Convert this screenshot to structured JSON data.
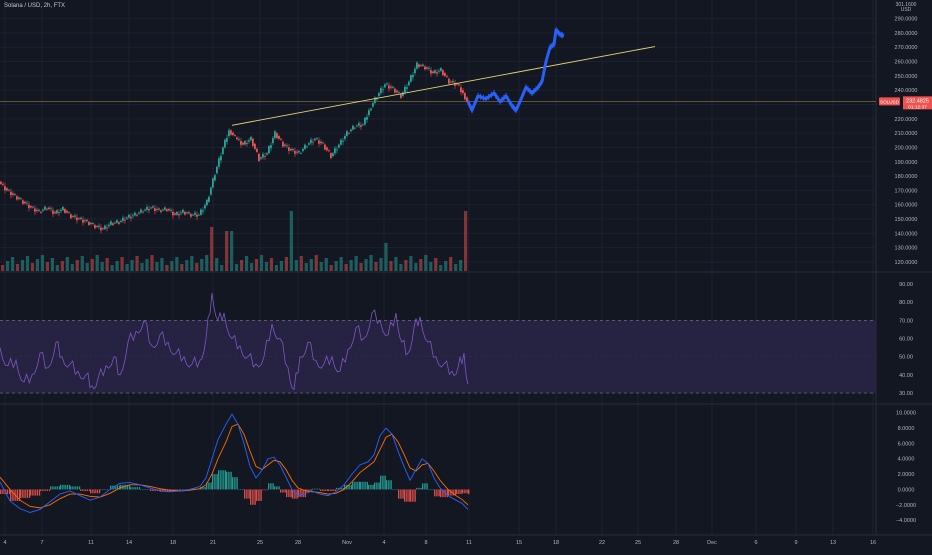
{
  "chart_title": "Solana / USD, 2h, FTX",
  "colors": {
    "background": "#131722",
    "bull": "#26a69a",
    "bear": "#ef5350",
    "projection": "#2962ff",
    "trendline": "#e6d57a",
    "rsi_line": "#7e57c2",
    "rsi_band": "#2a2448",
    "macd_line": "#2962ff",
    "signal_line": "#ff6d00",
    "hist_up": "#26a69a",
    "hist_down": "#ef5350",
    "price_label_bg": "#ef5350",
    "axis_text": "#b2b5be"
  },
  "chart_data": [
    {
      "type": "line",
      "name": "price",
      "x_ticks": [
        "4",
        "7",
        "11",
        "14",
        "18",
        "21",
        "25",
        "28",
        "Nov",
        "4",
        "8",
        "11",
        "15",
        "18",
        "22",
        "25",
        "28",
        "Dec",
        "6",
        "9",
        "13",
        "16"
      ],
      "y_ticks": [
        120,
        130,
        140,
        150,
        160,
        170,
        180,
        190,
        200,
        210,
        220,
        230,
        240,
        250,
        260,
        270,
        280,
        290
      ],
      "y_tick_labels": [
        "120.0000",
        "130.0000",
        "140.0000",
        "150.0000",
        "160.0000",
        "170.0000",
        "180.0000",
        "190.0000",
        "200.0000",
        "210.0000",
        "220.0000",
        "230.0000",
        "240.0000",
        "250.0000",
        "260.0000",
        "270.0000",
        "280.0000",
        "290.0000"
      ],
      "y_top_label": "301.1600",
      "y_unit": "USD",
      "ylim": [
        113,
        303
      ],
      "candles": [
        [
          0,
          176
        ],
        [
          8,
          170
        ],
        [
          16,
          166
        ],
        [
          24,
          162
        ],
        [
          32,
          158
        ],
        [
          40,
          155
        ],
        [
          48,
          158
        ],
        [
          56,
          154
        ],
        [
          64,
          157
        ],
        [
          72,
          152
        ],
        [
          80,
          150
        ],
        [
          88,
          148
        ],
        [
          96,
          145
        ],
        [
          104,
          143
        ],
        [
          112,
          147
        ],
        [
          120,
          148
        ],
        [
          128,
          151
        ],
        [
          136,
          153
        ],
        [
          144,
          156
        ],
        [
          152,
          158
        ],
        [
          160,
          156
        ],
        [
          168,
          157
        ],
        [
          176,
          153
        ],
        [
          184,
          155
        ],
        [
          192,
          153
        ],
        [
          200,
          153
        ],
        [
          208,
          162
        ],
        [
          216,
          182
        ],
        [
          224,
          200
        ],
        [
          230,
          212
        ],
        [
          236,
          207
        ],
        [
          244,
          202
        ],
        [
          252,
          206
        ],
        [
          260,
          192
        ],
        [
          268,
          196
        ],
        [
          276,
          210
        ],
        [
          284,
          202
        ],
        [
          292,
          198
        ],
        [
          300,
          196
        ],
        [
          308,
          202
        ],
        [
          316,
          206
        ],
        [
          324,
          202
        ],
        [
          332,
          194
        ],
        [
          340,
          202
        ],
        [
          348,
          210
        ],
        [
          356,
          215
        ],
        [
          364,
          216
        ],
        [
          370,
          226
        ],
        [
          378,
          236
        ],
        [
          386,
          244
        ],
        [
          394,
          241
        ],
        [
          402,
          236
        ],
        [
          410,
          246
        ],
        [
          418,
          258
        ],
        [
          426,
          256
        ],
        [
          434,
          252
        ],
        [
          442,
          254
        ],
        [
          450,
          246
        ],
        [
          458,
          244
        ],
        [
          464,
          238
        ],
        [
          468,
          232
        ]
      ],
      "volume_bars_count": 94,
      "volume_spikes": [
        [
          212,
          0.55
        ],
        [
          228,
          0.5
        ],
        [
          290,
          0.75
        ],
        [
          385,
          0.35
        ],
        [
          467,
          0.75
        ]
      ],
      "projection": [
        [
          468,
          232
        ],
        [
          472,
          226
        ],
        [
          478,
          236
        ],
        [
          486,
          234
        ],
        [
          494,
          238
        ],
        [
          500,
          232
        ],
        [
          506,
          236
        ],
        [
          512,
          229
        ],
        [
          516,
          226
        ],
        [
          520,
          232
        ],
        [
          526,
          242
        ],
        [
          532,
          238
        ],
        [
          538,
          242
        ],
        [
          542,
          246
        ],
        [
          546,
          260
        ],
        [
          550,
          270
        ],
        [
          554,
          272
        ],
        [
          556,
          282
        ],
        [
          560,
          279
        ],
        [
          564,
          278
        ]
      ],
      "trendline": [
        [
          232,
          215.5
        ],
        [
          655,
          270.5
        ]
      ],
      "horizontal_line": 232.2,
      "current_price_label": "232.4825",
      "countdown_label": "01:12:37",
      "symbol_label": "SOLUSD"
    },
    {
      "type": "line",
      "name": "RSI",
      "y_ticks": [
        30,
        40,
        50,
        60,
        70,
        80,
        90
      ],
      "y_tick_labels": [
        "30.00",
        "40.00",
        "50.00",
        "60.00",
        "70.00",
        "80.00",
        "90.00"
      ],
      "ylim": [
        24,
        96
      ],
      "band": [
        30,
        70
      ],
      "points": [
        [
          0,
          55
        ],
        [
          8,
          45
        ],
        [
          16,
          48
        ],
        [
          24,
          36
        ],
        [
          32,
          40
        ],
        [
          40,
          52
        ],
        [
          48,
          44
        ],
        [
          56,
          58
        ],
        [
          62,
          50
        ],
        [
          70,
          46
        ],
        [
          78,
          42
        ],
        [
          86,
          40
        ],
        [
          92,
          34
        ],
        [
          98,
          38
        ],
        [
          106,
          45
        ],
        [
          114,
          50
        ],
        [
          120,
          40
        ],
        [
          128,
          58
        ],
        [
          136,
          64
        ],
        [
          144,
          70
        ],
        [
          152,
          56
        ],
        [
          160,
          62
        ],
        [
          168,
          58
        ],
        [
          176,
          52
        ],
        [
          184,
          50
        ],
        [
          192,
          46
        ],
        [
          200,
          48
        ],
        [
          206,
          60
        ],
        [
          212,
          85
        ],
        [
          218,
          70
        ],
        [
          224,
          74
        ],
        [
          232,
          60
        ],
        [
          240,
          56
        ],
        [
          248,
          50
        ],
        [
          256,
          46
        ],
        [
          264,
          50
        ],
        [
          272,
          68
        ],
        [
          280,
          60
        ],
        [
          288,
          44
        ],
        [
          294,
          32
        ],
        [
          300,
          50
        ],
        [
          308,
          58
        ],
        [
          316,
          48
        ],
        [
          324,
          46
        ],
        [
          332,
          50
        ],
        [
          340,
          42
        ],
        [
          348,
          54
        ],
        [
          356,
          66
        ],
        [
          364,
          60
        ],
        [
          372,
          74
        ],
        [
          380,
          70
        ],
        [
          388,
          62
        ],
        [
          396,
          74
        ],
        [
          402,
          58
        ],
        [
          408,
          52
        ],
        [
          414,
          66
        ],
        [
          420,
          72
        ],
        [
          428,
          58
        ],
        [
          436,
          50
        ],
        [
          444,
          46
        ],
        [
          452,
          42
        ],
        [
          458,
          44
        ],
        [
          464,
          52
        ],
        [
          468,
          35
        ]
      ]
    },
    {
      "type": "line",
      "name": "MACD",
      "y_ticks": [
        -4,
        -2,
        0,
        2,
        4,
        6,
        8,
        10
      ],
      "y_tick_labels": [
        "−4.0000",
        "−2.0000",
        "0.0000",
        "2.0000",
        "4.0000",
        "6.0000",
        "8.0000",
        "10.0000"
      ],
      "ylim": [
        -4.5,
        11
      ],
      "macd": [
        [
          0,
          1.0
        ],
        [
          10,
          -1.5
        ],
        [
          20,
          -2.5
        ],
        [
          30,
          -3.0
        ],
        [
          40,
          -2.6
        ],
        [
          50,
          -1.6
        ],
        [
          60,
          -0.6
        ],
        [
          70,
          -0.2
        ],
        [
          80,
          -0.8
        ],
        [
          90,
          -1.4
        ],
        [
          100,
          -1.0
        ],
        [
          110,
          0.0
        ],
        [
          120,
          0.8
        ],
        [
          130,
          0.9
        ],
        [
          140,
          0.6
        ],
        [
          150,
          0.2
        ],
        [
          160,
          -0.2
        ],
        [
          170,
          -0.3
        ],
        [
          180,
          -0.2
        ],
        [
          190,
          0.0
        ],
        [
          200,
          0.4
        ],
        [
          206,
          1.5
        ],
        [
          212,
          4.0
        ],
        [
          218,
          6.5
        ],
        [
          226,
          8.5
        ],
        [
          232,
          9.8
        ],
        [
          238,
          8.5
        ],
        [
          244,
          6.0
        ],
        [
          250,
          3.0
        ],
        [
          256,
          1.5
        ],
        [
          262,
          2.5
        ],
        [
          268,
          4.0
        ],
        [
          274,
          4.2
        ],
        [
          280,
          3.2
        ],
        [
          286,
          1.6
        ],
        [
          292,
          0.0
        ],
        [
          298,
          -0.8
        ],
        [
          306,
          -0.5
        ],
        [
          312,
          -0.2
        ],
        [
          320,
          -0.6
        ],
        [
          328,
          -0.8
        ],
        [
          336,
          -0.3
        ],
        [
          344,
          0.6
        ],
        [
          352,
          2.0
        ],
        [
          360,
          3.2
        ],
        [
          368,
          3.6
        ],
        [
          374,
          4.5
        ],
        [
          380,
          7.0
        ],
        [
          386,
          8.0
        ],
        [
          392,
          7.2
        ],
        [
          398,
          5.0
        ],
        [
          404,
          3.0
        ],
        [
          410,
          1.2
        ],
        [
          416,
          2.6
        ],
        [
          422,
          4.0
        ],
        [
          428,
          3.4
        ],
        [
          434,
          1.5
        ],
        [
          440,
          0.2
        ],
        [
          448,
          -0.8
        ],
        [
          456,
          -1.4
        ],
        [
          462,
          -1.8
        ],
        [
          468,
          -2.6
        ]
      ],
      "signal": [
        [
          0,
          1.6
        ],
        [
          10,
          0.0
        ],
        [
          20,
          -1.4
        ],
        [
          30,
          -2.2
        ],
        [
          40,
          -2.4
        ],
        [
          50,
          -2.0
        ],
        [
          60,
          -1.2
        ],
        [
          70,
          -0.6
        ],
        [
          80,
          -0.6
        ],
        [
          90,
          -0.9
        ],
        [
          100,
          -1.0
        ],
        [
          110,
          -0.5
        ],
        [
          120,
          0.2
        ],
        [
          130,
          0.6
        ],
        [
          140,
          0.6
        ],
        [
          150,
          0.4
        ],
        [
          160,
          0.1
        ],
        [
          170,
          -0.1
        ],
        [
          180,
          -0.2
        ],
        [
          190,
          -0.1
        ],
        [
          200,
          0.1
        ],
        [
          206,
          0.6
        ],
        [
          212,
          2.0
        ],
        [
          218,
          4.0
        ],
        [
          226,
          6.2
        ],
        [
          232,
          8.2
        ],
        [
          238,
          8.5
        ],
        [
          244,
          7.2
        ],
        [
          250,
          5.0
        ],
        [
          256,
          3.0
        ],
        [
          262,
          2.6
        ],
        [
          268,
          3.2
        ],
        [
          274,
          3.8
        ],
        [
          280,
          3.6
        ],
        [
          286,
          2.6
        ],
        [
          292,
          1.2
        ],
        [
          298,
          0.2
        ],
        [
          306,
          -0.2
        ],
        [
          312,
          -0.3
        ],
        [
          320,
          -0.4
        ],
        [
          328,
          -0.6
        ],
        [
          336,
          -0.5
        ],
        [
          344,
          0.0
        ],
        [
          352,
          1.0
        ],
        [
          360,
          2.2
        ],
        [
          368,
          3.0
        ],
        [
          374,
          3.6
        ],
        [
          380,
          5.2
        ],
        [
          386,
          6.8
        ],
        [
          392,
          7.2
        ],
        [
          398,
          6.2
        ],
        [
          404,
          4.6
        ],
        [
          410,
          2.8
        ],
        [
          416,
          2.4
        ],
        [
          422,
          3.2
        ],
        [
          428,
          3.4
        ],
        [
          434,
          2.4
        ],
        [
          440,
          1.2
        ],
        [
          448,
          0.0
        ],
        [
          456,
          -0.8
        ],
        [
          462,
          -1.3
        ],
        [
          468,
          -2.0
        ]
      ]
    }
  ]
}
